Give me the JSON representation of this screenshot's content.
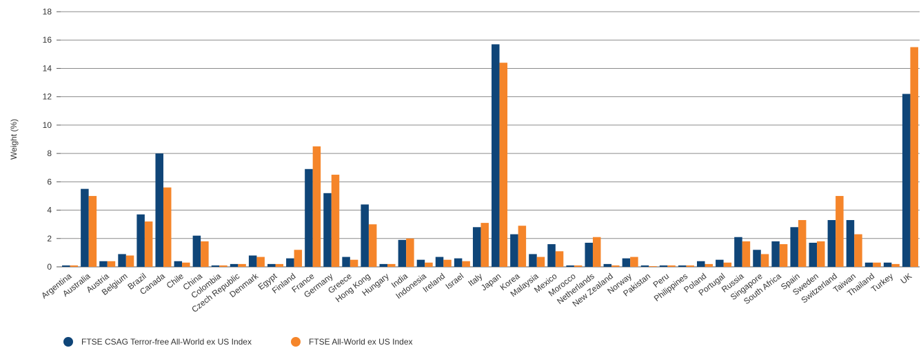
{
  "chart_data": {
    "type": "bar",
    "title": "",
    "xlabel": "",
    "ylabel": "Weight (%)",
    "ylim": [
      0,
      18
    ],
    "yticks": [
      0,
      2,
      4,
      6,
      8,
      10,
      12,
      14,
      16,
      18
    ],
    "grid": true,
    "legend_position": "bottom-left",
    "categories": [
      "Argentina",
      "Australia",
      "Austria",
      "Belgium",
      "Brazil",
      "Canada",
      "Chile",
      "China",
      "Colombia",
      "Czech Republic",
      "Denmark",
      "Egypt",
      "Finland",
      "France",
      "Germany",
      "Greece",
      "Hong Kong",
      "Hungary",
      "India",
      "Indonesia",
      "Ireland",
      "Israel",
      "Italy",
      "Japan",
      "Korea",
      "Malaysia",
      "Mexico",
      "Morocco",
      "Netherlands",
      "New Zealand",
      "Norway",
      "Pakistan",
      "Peru",
      "Philippines",
      "Poland",
      "Portugal",
      "Russia",
      "Singapore",
      "South Africa",
      "Spain",
      "Sweden",
      "Switzerland",
      "Taiwan",
      "Thailand",
      "Turkey",
      "UK"
    ],
    "series": [
      {
        "name": "FTSE CSAG Terror-free All-World ex US Index",
        "color": "#0f4578",
        "values": [
          0.1,
          5.5,
          0.4,
          0.9,
          3.7,
          8.0,
          0.4,
          2.2,
          0.1,
          0.2,
          0.8,
          0.2,
          0.6,
          6.9,
          5.2,
          0.7,
          4.4,
          0.2,
          1.9,
          0.5,
          0.7,
          0.6,
          2.8,
          15.7,
          2.3,
          0.9,
          1.6,
          0.1,
          1.7,
          0.2,
          0.6,
          0.1,
          0.1,
          0.1,
          0.4,
          0.5,
          2.1,
          1.2,
          1.8,
          2.8,
          1.7,
          3.3,
          3.3,
          0.3,
          0.3,
          12.2
        ]
      },
      {
        "name": "FTSE All-World ex US Index",
        "color": "#f5852a",
        "values": [
          0.1,
          5.0,
          0.4,
          0.8,
          3.2,
          5.6,
          0.3,
          1.8,
          0.1,
          0.2,
          0.7,
          0.2,
          1.2,
          8.5,
          6.5,
          0.5,
          3.0,
          0.2,
          2.0,
          0.3,
          0.5,
          0.4,
          3.1,
          14.4,
          2.9,
          0.7,
          1.1,
          0.1,
          2.1,
          0.1,
          0.7,
          0.05,
          0.1,
          0.1,
          0.2,
          0.3,
          1.8,
          0.9,
          1.6,
          3.3,
          1.8,
          5.0,
          2.3,
          0.3,
          0.2,
          15.5
        ]
      }
    ]
  }
}
